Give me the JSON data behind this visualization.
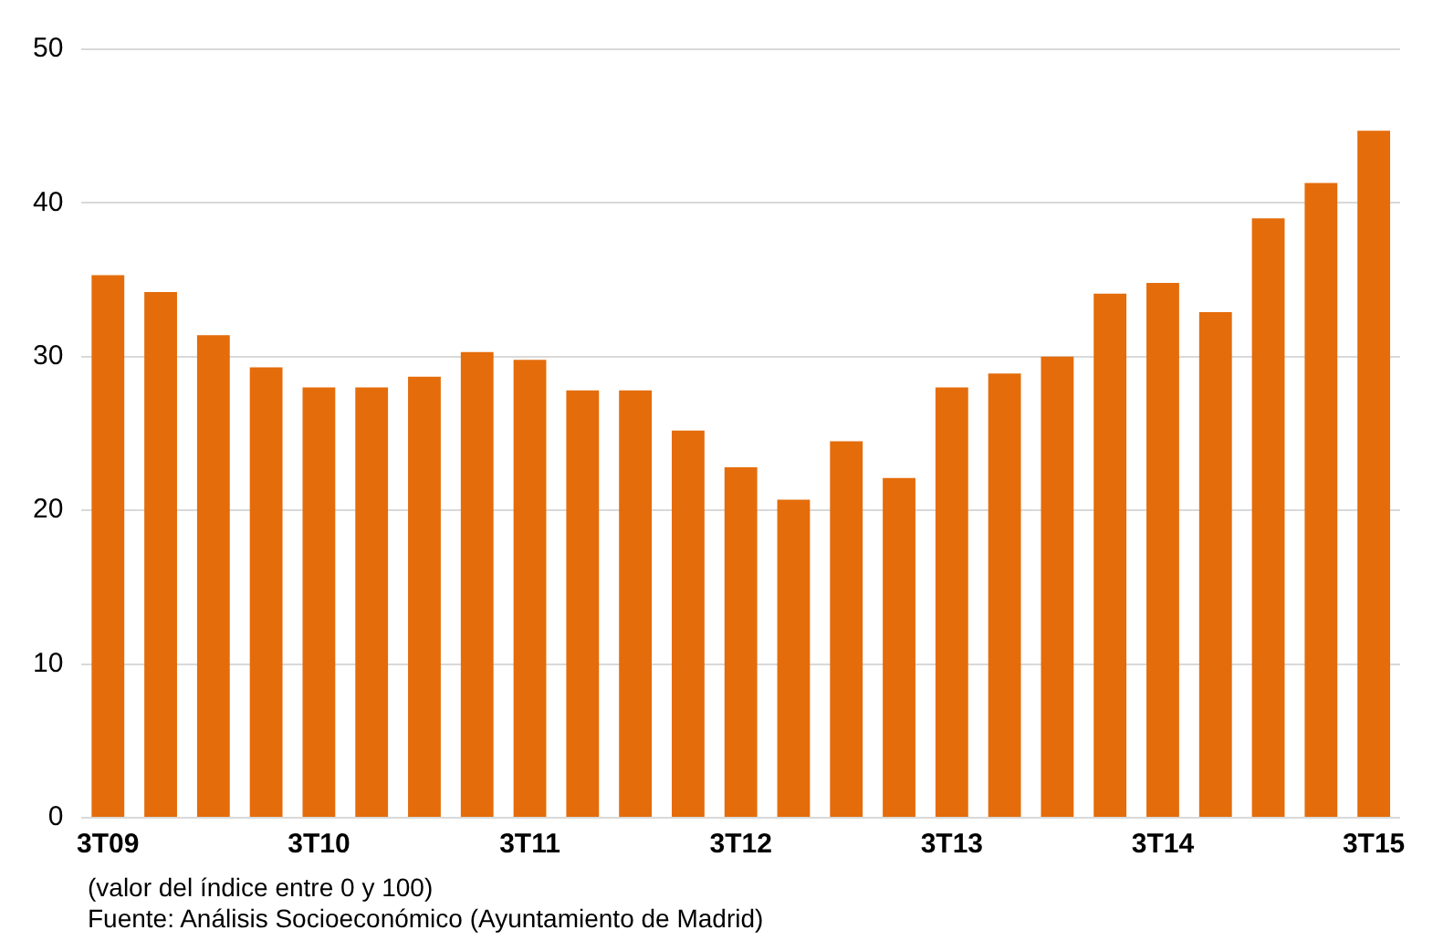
{
  "chart_data": {
    "type": "bar",
    "categories": [
      "3T09",
      null,
      null,
      null,
      "3T10",
      null,
      null,
      null,
      "3T11",
      null,
      null,
      null,
      "3T12",
      null,
      null,
      null,
      "3T13",
      null,
      null,
      null,
      "3T14",
      null,
      null,
      null,
      "3T15"
    ],
    "values": [
      35.3,
      34.2,
      31.4,
      29.3,
      28,
      28,
      28.7,
      30.3,
      29.8,
      27.8,
      27.8,
      25.2,
      22.8,
      20.7,
      24.5,
      22.1,
      28,
      28.9,
      30,
      34.1,
      34.8,
      32.9,
      39,
      41.3,
      44.7
    ],
    "color": "#e46c0a",
    "ylim": [
      0,
      50
    ],
    "yticks": [
      0,
      10,
      20,
      30,
      40,
      50
    ],
    "grid": "y",
    "annotations": [
      "(valor del índice entre 0 y 100)",
      "Fuente: Análisis Socioeconómico (Ayuntamiento de Madrid)"
    ]
  }
}
